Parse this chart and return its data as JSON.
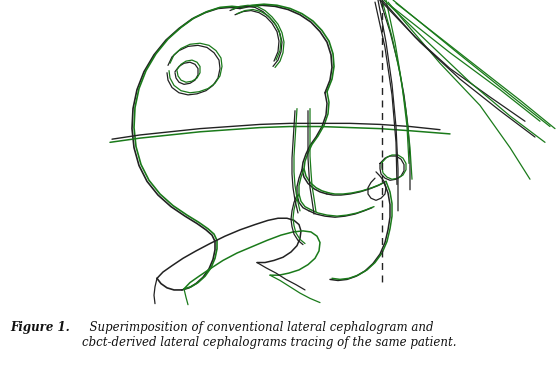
{
  "caption_bold": "Figure 1.",
  "caption_italic": "  Superimposition of conventional lateral cephalogram and\ncbct-derived lateral cephalograms tracing of the same patient.",
  "bg_color": "#ffffff",
  "black_color": "#222222",
  "green_color": "#1a7a1a",
  "gray_color": "#777777",
  "figure_width": 5.56,
  "figure_height": 3.92,
  "dpi": 100
}
